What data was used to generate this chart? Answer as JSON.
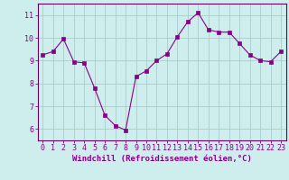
{
  "x": [
    0,
    1,
    2,
    3,
    4,
    5,
    6,
    7,
    8,
    9,
    10,
    11,
    12,
    13,
    14,
    15,
    16,
    17,
    18,
    19,
    20,
    21,
    22,
    23
  ],
  "y": [
    9.25,
    9.4,
    9.95,
    8.95,
    8.9,
    7.8,
    6.6,
    6.15,
    5.95,
    8.3,
    8.55,
    9.0,
    9.3,
    10.05,
    10.7,
    11.1,
    10.35,
    10.25,
    10.25,
    9.75,
    9.25,
    9.0,
    8.95,
    9.4
  ],
  "line_color": "#880088",
  "marker": "s",
  "marker_size": 2.2,
  "background_color": "#ceeeed",
  "grid_color": "#aacccc",
  "xlabel": "Windchill (Refroidissement éolien,°C)",
  "xlabel_fontsize": 6.5,
  "xtick_labels": [
    "0",
    "1",
    "2",
    "3",
    "4",
    "5",
    "6",
    "7",
    "8",
    "9",
    "10",
    "11",
    "12",
    "13",
    "14",
    "15",
    "16",
    "17",
    "18",
    "19",
    "20",
    "21",
    "22",
    "23"
  ],
  "ytick_labels": [
    "6",
    "7",
    "8",
    "9",
    "10",
    "11"
  ],
  "yticks": [
    6,
    7,
    8,
    9,
    10,
    11
  ],
  "ylim": [
    5.5,
    11.5
  ],
  "xlim": [
    -0.5,
    23.5
  ],
  "tick_fontsize": 6.0,
  "border_color": "#660066"
}
